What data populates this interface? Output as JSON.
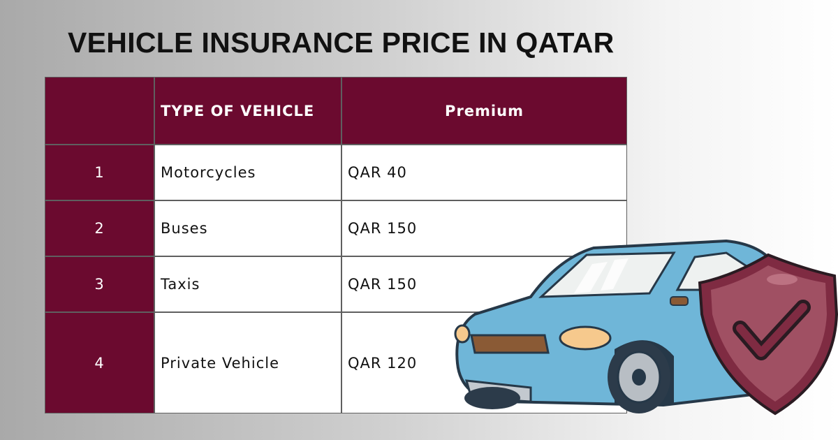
{
  "header": {
    "title": "VEHICLE INSURANCE PRICE IN QATAR"
  },
  "table": {
    "columns": [
      "TYPE OF VEHICLE",
      "Premium"
    ],
    "rows": [
      [
        1,
        "Motorcycles",
        "QAR 40"
      ],
      [
        2,
        "Buses",
        "QAR 150"
      ],
      [
        3,
        "Taxis",
        "QAR 150"
      ],
      [
        4,
        "Private Vehicle",
        "QAR 120"
      ]
    ]
  }
}
